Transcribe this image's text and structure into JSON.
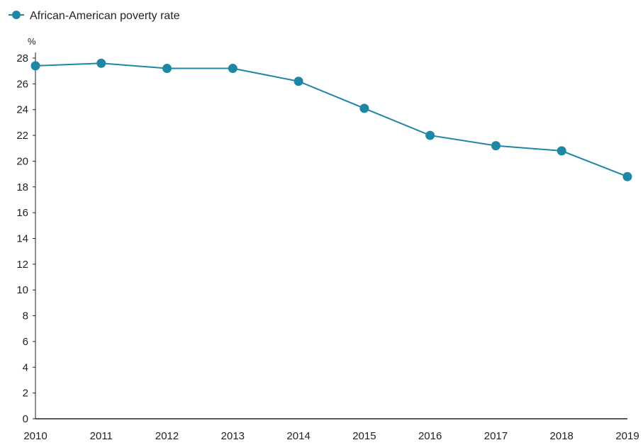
{
  "chart_data": {
    "type": "line",
    "title": "",
    "xlabel": "",
    "ylabel": "%",
    "x": [
      "2010",
      "2011",
      "2012",
      "2013",
      "2014",
      "2015",
      "2016",
      "2017",
      "2018",
      "2019"
    ],
    "series": [
      {
        "name": "African-American poverty rate",
        "values": [
          27.4,
          27.6,
          27.2,
          27.2,
          26.2,
          24.1,
          22.0,
          21.2,
          20.8,
          18.8
        ],
        "color": "#1f86a3"
      }
    ],
    "ylim": [
      0,
      28
    ],
    "yticks": [
      "0",
      "2",
      "4",
      "6",
      "8",
      "10",
      "12",
      "14",
      "16",
      "18",
      "20",
      "22",
      "24",
      "26",
      "28"
    ],
    "grid": false,
    "legend_position": "top-left",
    "marker": "circle"
  }
}
